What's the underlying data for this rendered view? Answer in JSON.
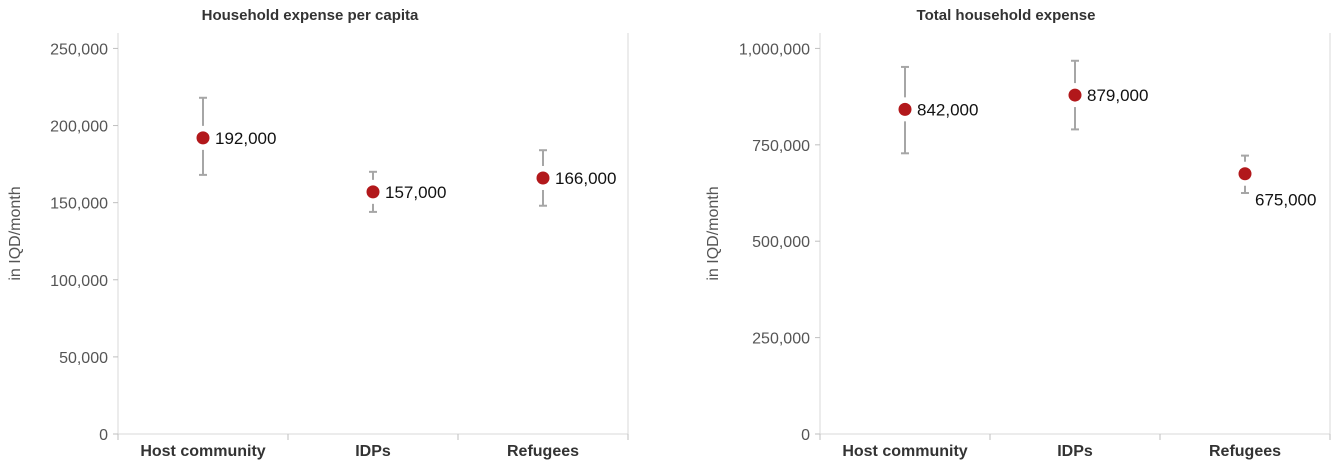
{
  "chart_data": [
    {
      "type": "scatter",
      "title": "Household expense per capita",
      "ylabel": "in IQD/month",
      "xlabel": "",
      "categories": [
        "Host community",
        "IDPs",
        "Refugees"
      ],
      "values": [
        192000,
        157000,
        166000
      ],
      "value_labels": [
        "192,000",
        "157,000",
        "166,000"
      ],
      "error_low": [
        168000,
        144000,
        148000
      ],
      "error_high": [
        218000,
        170000,
        184000
      ],
      "ylim": [
        0,
        260000
      ],
      "yticks": [
        0,
        50000,
        100000,
        150000,
        200000,
        250000
      ],
      "ytick_labels": [
        "0",
        "50,000",
        "100,000",
        "150,000",
        "200,000",
        "250,000"
      ],
      "label_position": [
        "right",
        "right",
        "right"
      ],
      "grid": false,
      "marker_color": "#b2181b",
      "errorbar_color": "#a6a6a6"
    },
    {
      "type": "scatter",
      "title": "Total household expense",
      "ylabel": "in IQD/month",
      "xlabel": "",
      "categories": [
        "Host community",
        "IDPs",
        "Refugees"
      ],
      "values": [
        842000,
        879000,
        675000
      ],
      "value_labels": [
        "842,000",
        "879,000",
        "675,000"
      ],
      "error_low": [
        728000,
        790000,
        625000
      ],
      "error_high": [
        952000,
        968000,
        722000
      ],
      "ylim": [
        0,
        1040000
      ],
      "yticks": [
        0,
        250000,
        500000,
        750000,
        1000000
      ],
      "ytick_labels": [
        "0",
        "250,000",
        "500,000",
        "750,000",
        "1,000,000"
      ],
      "label_position": [
        "right",
        "right",
        "below-right"
      ],
      "grid": false,
      "marker_color": "#b2181b",
      "errorbar_color": "#a6a6a6"
    }
  ]
}
